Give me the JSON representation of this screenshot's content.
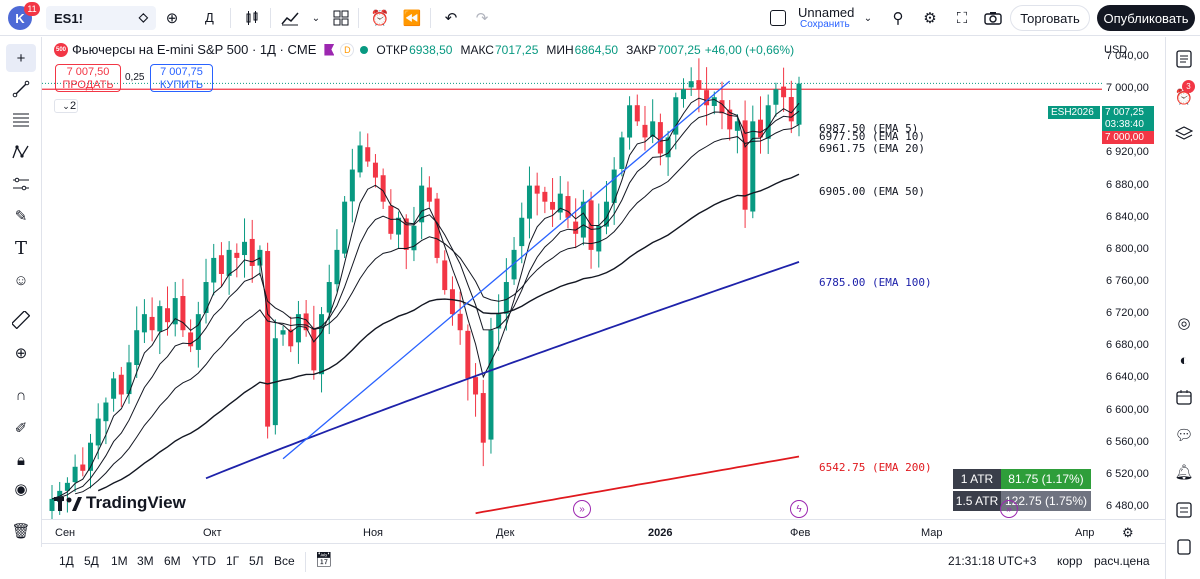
{
  "topbar": {
    "avatar_letter": "K",
    "notifications": "11",
    "symbol": "ES1!",
    "interval": "Д",
    "layout_name": "Unnamed",
    "layout_status": "Сохранить",
    "trade_button": "Торговать",
    "publish_button": "Опубликовать"
  },
  "legend": {
    "logo_text": "500",
    "title": "Фьючерсы на E-mini S&P 500 · 1Д · CME",
    "open_label": "ОТКР",
    "open_value": "6938,50",
    "high_label": "МАКС",
    "high_value": "7017,25",
    "low_label": "МИН",
    "low_value": "6864,50",
    "close_label": "ЗАКР",
    "close_value": "7007,25",
    "change": "+46,00 (+0,66%)",
    "dot_icon_text": "D"
  },
  "order": {
    "sell_price": "7 007,50",
    "sell_label": "ПРОДАТЬ",
    "spread": "0,25",
    "buy_price": "7 007,75",
    "buy_label": "КУПИТЬ"
  },
  "indicators_collapsed_count": "2",
  "ema_labels": {
    "ema5": "6987.50 (EMA 5)",
    "ema10": "6977.50 (EMA 10)",
    "ema20": "6961.75 (EMA 20)",
    "ema50": "6905.00 (EMA 50)",
    "ema100": "6785.00 (EMA 100)",
    "ema200": "6542.75 (EMA 200)"
  },
  "price_scale": {
    "currency": "USD",
    "ticks": [
      "7 040,00",
      "7 000,00",
      "6 960,00",
      "6 920,00",
      "6 880,00",
      "6 840,00",
      "6 800,00",
      "6 760,00",
      "6 720,00",
      "6 680,00",
      "6 640,00",
      "6 600,00",
      "6 560,00",
      "6 520,00",
      "6 480,00"
    ],
    "symbol_tag": "ESH2026",
    "last_price": "7 007,25",
    "countdown": "03:38:40",
    "line_price": "7 000,00"
  },
  "atr": [
    {
      "label": "1 ATR",
      "value": "81.75 (1.17%)"
    },
    {
      "label": "1.5 ATR",
      "value": "122.75 (1.75%)"
    }
  ],
  "brand": "TradingView",
  "time_axis": [
    "Сен",
    "Окт",
    "Ноя",
    "Дек",
    "2026",
    "Фев",
    "Мар",
    "Апр"
  ],
  "ranges": [
    "1Д",
    "5Д",
    "1М",
    "3М",
    "6М",
    "YTD",
    "1Г",
    "5Л",
    "Все"
  ],
  "bottom_status": {
    "clock": "21:31:18 UTC+3",
    "adj": "корр",
    "calc": "расч.цена"
  },
  "colors": {
    "up": "#089981",
    "down": "#f23645",
    "ema100": "#1e22aa",
    "ema200": "#e0191e",
    "trendline": "#2962ff"
  },
  "chart_data": {
    "type": "candlestick",
    "series": [
      {
        "name": "EMA 5",
        "last": 6987.5
      },
      {
        "name": "EMA 10",
        "last": 6977.5
      },
      {
        "name": "EMA 20",
        "last": 6961.75
      },
      {
        "name": "EMA 50",
        "last": 6905.0
      },
      {
        "name": "EMA 100",
        "last": 6785.0
      },
      {
        "name": "EMA 200",
        "last": 6542.75
      }
    ],
    "ohlc_last": {
      "open": 6938.5,
      "high": 7017.25,
      "low": 6864.5,
      "close": 7007.25
    },
    "ylim": [
      6465,
      7065
    ],
    "x_labels": [
      "Сен",
      "Окт",
      "Ноя",
      "Дек",
      "2026",
      "Фев",
      "Мар",
      "Апр"
    ],
    "horizontal_line": 7000.0,
    "closes_approx": [
      6490,
      6500,
      6510,
      6530,
      6525,
      6560,
      6590,
      6610,
      6640,
      6620,
      6660,
      6700,
      6720,
      6700,
      6730,
      6710,
      6740,
      6700,
      6680,
      6720,
      6760,
      6790,
      6770,
      6800,
      6790,
      6810,
      6780,
      6800,
      6580,
      6690,
      6700,
      6680,
      6720,
      6700,
      6650,
      6720,
      6760,
      6800,
      6860,
      6900,
      6930,
      6910,
      6890,
      6860,
      6820,
      6840,
      6800,
      6830,
      6880,
      6860,
      6790,
      6750,
      6720,
      6700,
      6640,
      6620,
      6560,
      6700,
      6720,
      6760,
      6800,
      6840,
      6880,
      6870,
      6860,
      6850,
      6870,
      6840,
      6820,
      6860,
      6800,
      6830,
      6860,
      6900,
      6940,
      6980,
      6960,
      6940,
      6960,
      6920,
      6940,
      6990,
      7000,
      7010,
      7000,
      6980,
      6990,
      6970,
      6950,
      6960,
      6850,
      6960,
      6940,
      6980,
      7000,
      6990,
      6960,
      7007
    ]
  }
}
